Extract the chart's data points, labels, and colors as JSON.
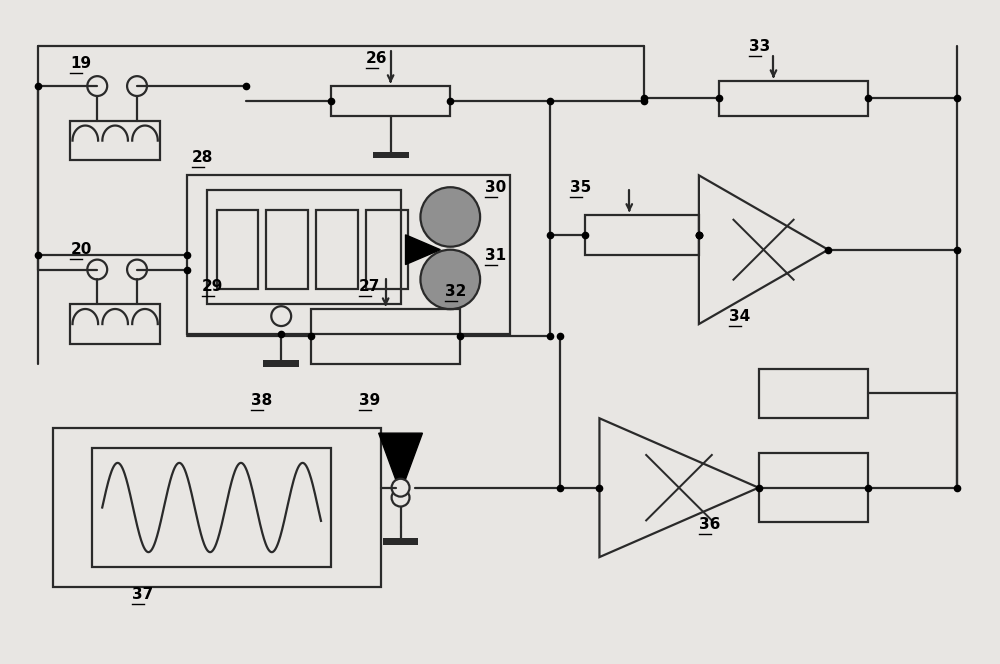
{
  "bg_color": "#e8e6e3",
  "line_color": "#2a2a2a",
  "line_width": 1.6,
  "dot_size": 5,
  "label_fontsize": 11
}
